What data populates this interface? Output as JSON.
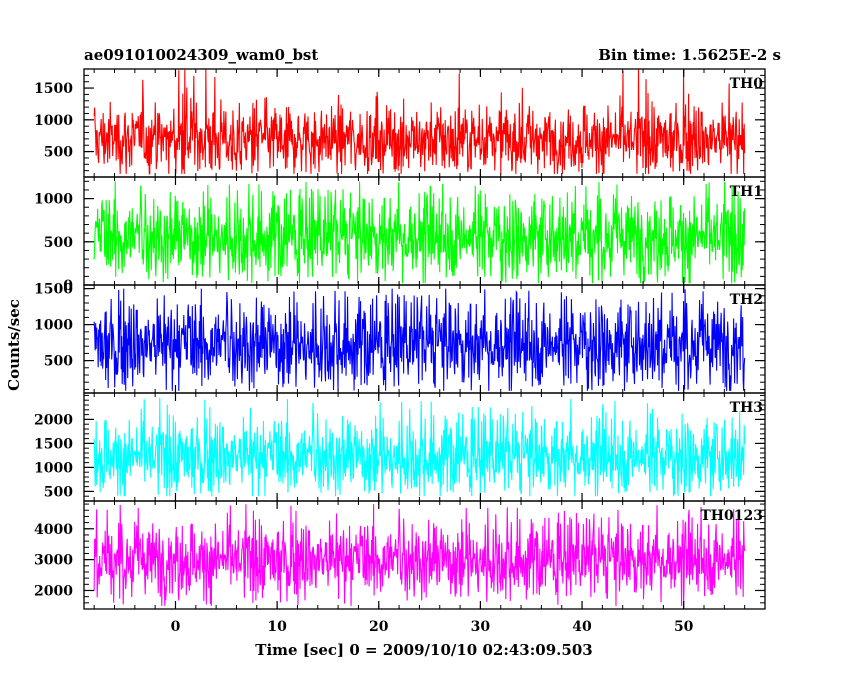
{
  "chart_data": {
    "type": "line",
    "title_left": "ae091010024309_wam0_bst",
    "title_right": "Bin time: 1.5625E-2 s",
    "xlabel": "Time [sec] 0 = 2009/10/10 02:43:09.503",
    "ylabel": "Counts/sec",
    "xlim": [
      -9,
      58
    ],
    "x_data_range": [
      -8,
      56
    ],
    "xticks": [
      0,
      10,
      20,
      30,
      40,
      50
    ],
    "xtick_labels": [
      "0",
      "10",
      "20",
      "30",
      "40",
      "50"
    ],
    "panels": [
      {
        "name": "TH0",
        "color": "#ff0000",
        "ylim": [
          100,
          1800
        ],
        "yticks": [
          500,
          1000,
          1500
        ],
        "ytick_labels": [
          "500",
          "1000",
          "1500"
        ],
        "typical_range": [
          300,
          1200
        ],
        "extreme_range": [
          150,
          1800
        ],
        "mean": 700
      },
      {
        "name": "TH1",
        "color": "#00ff00",
        "ylim": [
          0,
          1250
        ],
        "yticks": [
          0,
          500,
          1000
        ],
        "ytick_labels": [
          "0",
          "500",
          "1000"
        ],
        "typical_range": [
          150,
          950
        ],
        "extreme_range": [
          20,
          1200
        ],
        "mean": 560
      },
      {
        "name": "TH2",
        "color": "#0000ff",
        "ylim": [
          50,
          1550
        ],
        "yticks": [
          500,
          1000,
          1500
        ],
        "ytick_labels": [
          "500",
          "1000",
          "1500"
        ],
        "typical_range": [
          250,
          1250
        ],
        "extreme_range": [
          80,
          1500
        ],
        "mean": 730
      },
      {
        "name": "TH3",
        "color": "#00ffff",
        "ylim": [
          300,
          2550
        ],
        "yticks": [
          500,
          1000,
          1500,
          2000
        ],
        "ytick_labels": [
          "500",
          "1000",
          "1500",
          "2000"
        ],
        "typical_range": [
          600,
          1900
        ],
        "extreme_range": [
          400,
          2450
        ],
        "mean": 1230
      },
      {
        "name": "TH0123",
        "color": "#ff00ff",
        "ylim": [
          1400,
          4900
        ],
        "yticks": [
          2000,
          3000,
          4000
        ],
        "ytick_labels": [
          "2000",
          "3000",
          "4000"
        ],
        "typical_range": [
          2000,
          4000
        ],
        "extreme_range": [
          1500,
          4800
        ],
        "mean": 3000
      }
    ]
  }
}
